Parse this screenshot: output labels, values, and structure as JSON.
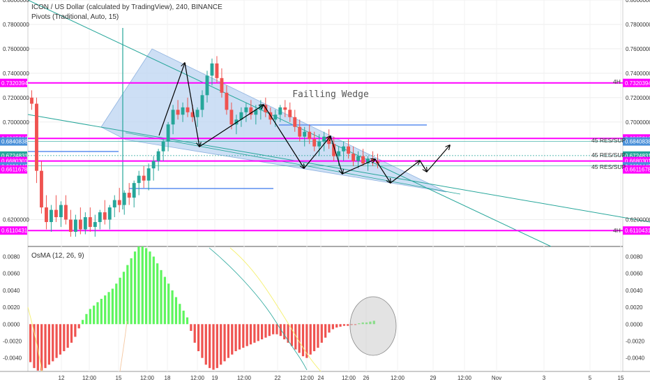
{
  "header": {
    "title": "ICON / US Dollar (calculated by TradingView), 240, BINANCE",
    "indicator": "Pivots (Traditional, Auto, 15)",
    "osma_label": "OsMA (12, 26, 9)"
  },
  "annotation": {
    "wedge_label": "Failling Wedge"
  },
  "pivots": {
    "r_label": "45 RES/SUP",
    "tf_label": "4H"
  },
  "colors": {
    "up": "#26a69a",
    "down": "#ef5350",
    "magenta": "#ff00ff",
    "wedge_fill": "#bcd4f2",
    "blue_line": "#5b8def",
    "osma_up": "#5ef55e",
    "osma_down": "#ef5350"
  },
  "chart_data": [
    {
      "type": "candlestick",
      "title": "ICON / US Dollar (calculated by TradingView), 240, BINANCE",
      "ylim": [
        0.598,
        0.8
      ],
      "y_ticks": [
        "0.8000000",
        "0.7800000",
        "0.7600000",
        "0.7400000",
        "0.7200000",
        "0.7000000",
        "0.6200000"
      ],
      "x_ticks": [
        "12",
        "12:00",
        "15",
        "12:00",
        "18",
        "12:00",
        "19",
        "12:00",
        "22",
        "12:00",
        "24",
        "12:00",
        "26",
        "12:00",
        "29",
        "12:00",
        "Nov",
        "3",
        "5",
        "15"
      ],
      "price_tags": [
        {
          "label": "0.7320394",
          "value": 0.7320394,
          "color": "#ff00ff"
        },
        {
          "label": "0.6865218",
          "value": 0.6865218,
          "color": "#ff00ff"
        },
        {
          "label": "0.6840838",
          "value": 0.6840838,
          "color": "#4a90d9"
        },
        {
          "label": "0.6724831",
          "value": 0.6724831,
          "color": "#26a69a"
        },
        {
          "label": "0.6680301",
          "value": 0.6680301,
          "color": "#ff00ff"
        },
        {
          "label": "02:02:41",
          "value": 0.6627,
          "color": "#26a69a"
        },
        {
          "label": "0.6636445",
          "value": 0.6636445,
          "color": "#4a90d9"
        },
        {
          "label": "0.6611678",
          "value": 0.6611678,
          "color": "#ff00ff"
        },
        {
          "label": "0.6110431",
          "value": 0.6110431,
          "color": "#ff00ff"
        }
      ],
      "candles": [
        [
          0.72,
          0.726,
          0.71,
          0.715
        ],
        [
          0.715,
          0.72,
          0.65,
          0.66
        ],
        [
          0.66,
          0.668,
          0.625,
          0.63
        ],
        [
          0.63,
          0.64,
          0.612,
          0.618
        ],
        [
          0.618,
          0.632,
          0.61,
          0.628
        ],
        [
          0.628,
          0.64,
          0.618,
          0.622
        ],
        [
          0.622,
          0.635,
          0.614,
          0.632
        ],
        [
          0.632,
          0.64,
          0.616,
          0.62
        ],
        [
          0.62,
          0.628,
          0.606,
          0.61
        ],
        [
          0.61,
          0.624,
          0.606,
          0.62
        ],
        [
          0.62,
          0.63,
          0.608,
          0.612
        ],
        [
          0.612,
          0.626,
          0.608,
          0.622
        ],
        [
          0.622,
          0.63,
          0.61,
          0.614
        ],
        [
          0.614,
          0.624,
          0.606,
          0.618
        ],
        [
          0.618,
          0.628,
          0.612,
          0.626
        ],
        [
          0.626,
          0.636,
          0.616,
          0.62
        ],
        [
          0.62,
          0.632,
          0.612,
          0.63
        ],
        [
          0.63,
          0.64,
          0.622,
          0.636
        ],
        [
          0.636,
          0.646,
          0.626,
          0.632
        ],
        [
          0.632,
          0.644,
          0.624,
          0.642
        ],
        [
          0.642,
          0.65,
          0.632,
          0.638
        ],
        [
          0.638,
          0.652,
          0.63,
          0.65
        ],
        [
          0.65,
          0.66,
          0.64,
          0.656
        ],
        [
          0.656,
          0.664,
          0.646,
          0.652
        ],
        [
          0.652,
          0.666,
          0.644,
          0.662
        ],
        [
          0.662,
          0.672,
          0.652,
          0.668
        ],
        [
          0.668,
          0.678,
          0.66,
          0.676
        ],
        [
          0.676,
          0.686,
          0.668,
          0.684
        ],
        [
          0.684,
          0.7,
          0.676,
          0.698
        ],
        [
          0.698,
          0.714,
          0.69,
          0.71
        ],
        [
          0.71,
          0.718,
          0.702,
          0.706
        ],
        [
          0.706,
          0.716,
          0.7,
          0.712
        ],
        [
          0.712,
          0.72,
          0.704,
          0.708
        ],
        [
          0.708,
          0.714,
          0.7,
          0.704
        ],
        [
          0.704,
          0.712,
          0.696,
          0.71
        ],
        [
          0.71,
          0.726,
          0.704,
          0.722
        ],
        [
          0.722,
          0.742,
          0.716,
          0.738
        ],
        [
          0.738,
          0.752,
          0.73,
          0.748
        ],
        [
          0.748,
          0.754,
          0.732,
          0.736
        ],
        [
          0.736,
          0.744,
          0.72,
          0.724
        ],
        [
          0.724,
          0.73,
          0.706,
          0.71
        ],
        [
          0.71,
          0.716,
          0.694,
          0.698
        ],
        [
          0.698,
          0.706,
          0.69,
          0.702
        ],
        [
          0.702,
          0.712,
          0.696,
          0.708
        ],
        [
          0.708,
          0.716,
          0.7,
          0.712
        ],
        [
          0.712,
          0.718,
          0.702,
          0.706
        ],
        [
          0.706,
          0.714,
          0.698,
          0.71
        ],
        [
          0.71,
          0.718,
          0.702,
          0.714
        ],
        [
          0.714,
          0.72,
          0.704,
          0.708
        ],
        [
          0.708,
          0.712,
          0.698,
          0.702
        ],
        [
          0.702,
          0.71,
          0.696,
          0.706
        ],
        [
          0.706,
          0.714,
          0.7,
          0.712
        ],
        [
          0.712,
          0.718,
          0.704,
          0.71
        ],
        [
          0.71,
          0.716,
          0.7,
          0.704
        ],
        [
          0.704,
          0.71,
          0.692,
          0.696
        ],
        [
          0.696,
          0.702,
          0.684,
          0.688
        ],
        [
          0.688,
          0.696,
          0.68,
          0.692
        ],
        [
          0.692,
          0.698,
          0.682,
          0.686
        ],
        [
          0.686,
          0.692,
          0.676,
          0.68
        ],
        [
          0.68,
          0.69,
          0.672,
          0.684
        ],
        [
          0.684,
          0.692,
          0.676,
          0.688
        ],
        [
          0.688,
          0.694,
          0.678,
          0.682
        ],
        [
          0.682,
          0.688,
          0.668,
          0.672
        ],
        [
          0.672,
          0.68,
          0.664,
          0.676
        ],
        [
          0.676,
          0.684,
          0.668,
          0.68
        ],
        [
          0.68,
          0.686,
          0.67,
          0.674
        ],
        [
          0.674,
          0.68,
          0.664,
          0.668
        ],
        [
          0.668,
          0.676,
          0.662,
          0.672
        ],
        [
          0.672,
          0.678,
          0.664,
          0.666
        ],
        [
          0.666,
          0.672,
          0.66,
          0.67
        ],
        [
          0.67,
          0.676,
          0.664,
          0.668
        ],
        [
          0.668,
          0.674,
          0.662,
          0.666
        ]
      ]
    },
    {
      "type": "bar",
      "title": "OsMA (12, 26, 9)",
      "ylim": [
        -0.0056,
        0.0092
      ],
      "y_ticks": [
        "0.0080",
        "0.0060",
        "0.0040",
        "0.0020",
        "0.0000",
        "-0.0020",
        "-0.0040"
      ],
      "values": [
        -0.0045,
        -0.0052,
        -0.0055,
        -0.0055,
        -0.0052,
        -0.0048,
        -0.0044,
        -0.004,
        -0.0036,
        -0.0032,
        -0.0028,
        -0.0022,
        -0.0015,
        -0.0005,
        0.0005,
        0.0012,
        0.0018,
        0.0022,
        0.0026,
        0.003,
        0.0034,
        0.0038,
        0.0042,
        0.0048,
        0.0055,
        0.0062,
        0.007,
        0.0078,
        0.0086,
        0.0092,
        0.0092,
        0.009,
        0.0086,
        0.008,
        0.0072,
        0.0064,
        0.0056,
        0.0048,
        0.004,
        0.0032,
        0.0024,
        0.0016,
        0.0008,
        -0.0008,
        -0.0022,
        -0.0032,
        -0.004,
        -0.0048,
        -0.0052,
        -0.0054,
        -0.0052,
        -0.0048,
        -0.0044,
        -0.004,
        -0.0036,
        -0.0032,
        -0.003,
        -0.0028,
        -0.0026,
        -0.0024,
        -0.0022,
        -0.002,
        -0.0018,
        -0.0016,
        -0.0014,
        -0.0012,
        -0.0012,
        -0.0014,
        -0.0018,
        -0.0022,
        -0.0026,
        -0.003,
        -0.0034,
        -0.0038,
        -0.004,
        -0.0036,
        -0.0032,
        -0.0028,
        -0.0022,
        -0.0016,
        -0.001,
        -0.0006,
        -0.0004,
        -0.0003,
        -0.0002,
        -0.0002,
        -0.0001,
        -0.0001,
        0.0001,
        0.0002,
        0.0002,
        0.0003,
        0.0004
      ]
    }
  ]
}
